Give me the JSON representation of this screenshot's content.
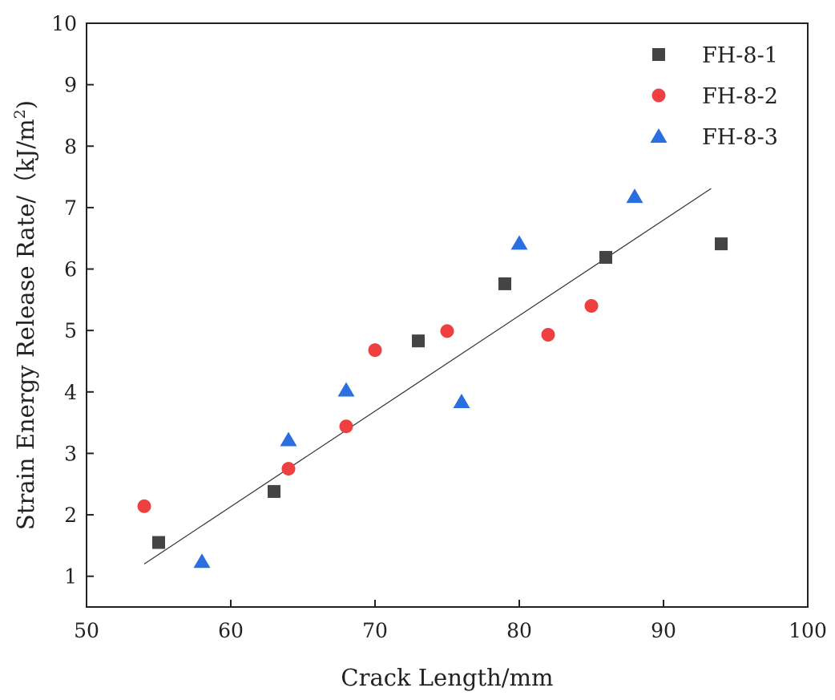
{
  "chart_data": {
    "type": "scatter",
    "title": "",
    "xlabel": "Crack Length/mm",
    "ylabel_main": "Strain Energy Release Rate/（kJ/m",
    "ylabel_sup": "2",
    "ylabel_close": ")",
    "xlim": [
      50,
      100
    ],
    "ylim": [
      0.5,
      10
    ],
    "xticks": [
      "50",
      "60",
      "70",
      "80",
      "90",
      "100"
    ],
    "yticks": [
      "1",
      "2",
      "3",
      "4",
      "5",
      "6",
      "7",
      "8",
      "9",
      "10"
    ],
    "grid": false,
    "legend_position": "top-right",
    "series": [
      {
        "name": "FH-8-1",
        "marker": "square",
        "color": "#444444",
        "x": [
          55,
          63,
          73,
          79,
          86,
          94
        ],
        "y": [
          1.55,
          2.38,
          4.83,
          5.76,
          6.19,
          6.41
        ]
      },
      {
        "name": "FH-8-2",
        "marker": "circle",
        "color": "#ee4040",
        "x": [
          54,
          64,
          68,
          70,
          75,
          82,
          85
        ],
        "y": [
          2.14,
          2.75,
          3.44,
          4.68,
          4.99,
          4.93,
          5.4
        ]
      },
      {
        "name": "FH-8-3",
        "marker": "triangle",
        "color": "#2a6fe0",
        "x": [
          58,
          64,
          68,
          76,
          80,
          88
        ],
        "y": [
          1.24,
          3.22,
          4.03,
          3.84,
          6.42,
          7.18
        ]
      }
    ],
    "fit_line": {
      "x": [
        54,
        93.3
      ],
      "y": [
        1.2,
        7.31
      ],
      "color": "#333333"
    }
  }
}
